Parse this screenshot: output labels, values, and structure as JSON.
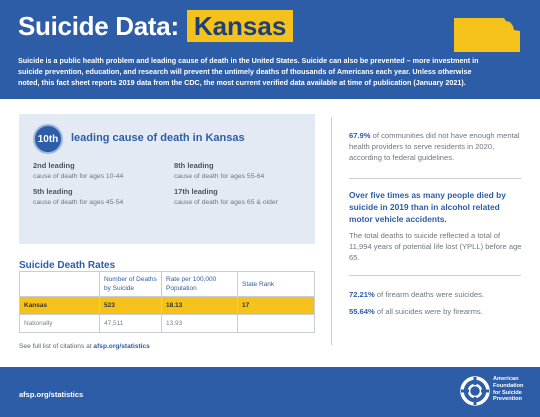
{
  "header": {
    "title": "Suicide Data:",
    "state": "Kansas",
    "intro": "Suicide is a public health problem and leading cause of death in the United States. Suicide can also be prevented – more investment in suicide prevention, education, and research will prevent the untimely deaths of thousands of Americans each year. Unless otherwise noted, this fact sheet reports 2019 data from the CDC, the most current verified data available at time of publication (January 2021).",
    "state_color": "#f4c21a"
  },
  "rank": {
    "badge": "10th",
    "heading": "leading cause of death in Kansas",
    "items": [
      {
        "label": "2nd leading",
        "desc": "cause of death for ages 10-44"
      },
      {
        "label": "8th leading",
        "desc": "cause of death for ages 55-64"
      },
      {
        "label": "5th leading",
        "desc": "cause of death for ages 45-54"
      },
      {
        "label": "17th leading",
        "desc": "cause of death for ages 65 & older"
      }
    ]
  },
  "table": {
    "title": "Suicide Death Rates",
    "headers": [
      "",
      "Number of Deaths by Suicide",
      "Rate per 100,000 Population",
      "State Rank"
    ],
    "rows": [
      {
        "name": "Kansas",
        "deaths": "523",
        "rate": "18.13",
        "rank": "17"
      },
      {
        "name": "Nationally",
        "deaths": "47,511",
        "rate": "13.93",
        "rank": ""
      }
    ]
  },
  "citation": {
    "prefix": "See full list of citations at",
    "link": "afsp.org/statistics"
  },
  "stats": {
    "s1_bold": "67.9%",
    "s1_text": " of communities did not have enough mental health providers to serve residents in 2020, according to federal guidelines.",
    "s2": "Over five times as many people died by suicide in 2019 than in alcohol related motor vehicle accidents.",
    "s3": "The total deaths to suicide reflected a total of 11,994 years of potential life lost (YPLL) before age 65.",
    "s4_bold": "72.21%",
    "s4_text": " of firearm deaths were suicides.",
    "s5_bold": "55.64%",
    "s5_text": " of all suicides were by firearms."
  },
  "footer": {
    "url": "afsp.org/statistics",
    "org_line1": "American",
    "org_line2": "Foundation",
    "org_line3": "for Suicide",
    "org_line4": "Prevention"
  },
  "colors": {
    "brand_blue": "#2e5da8",
    "highlight": "#f4c21a",
    "panel": "#e3eaf3"
  }
}
